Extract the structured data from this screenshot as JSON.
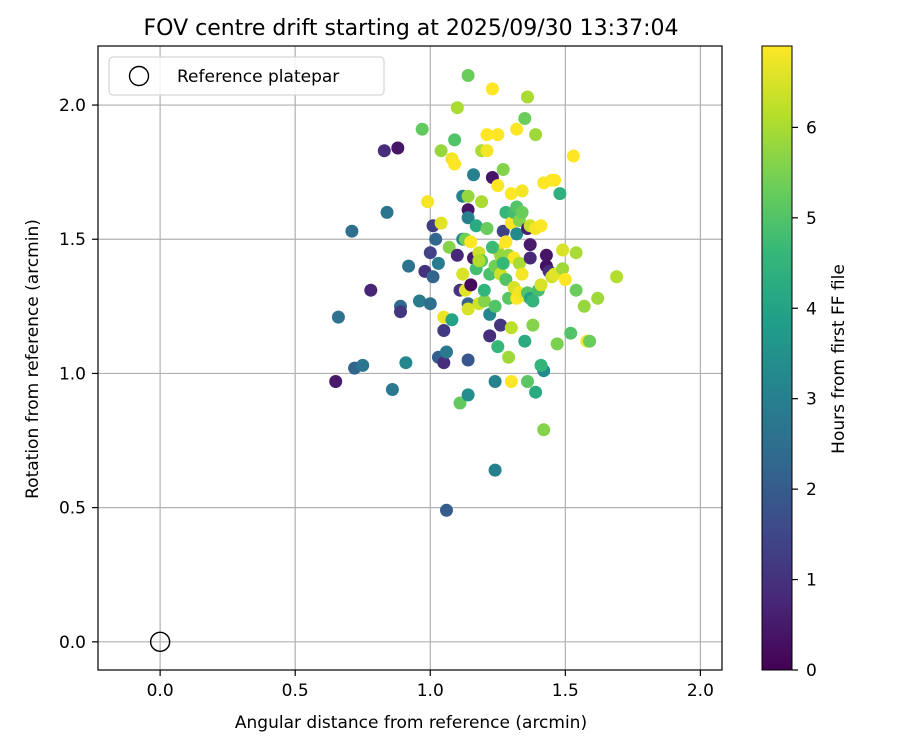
{
  "chart_data": {
    "type": "scatter",
    "title": "FOV centre drift starting at 2025/09/30 13:37:04",
    "xlabel": "Angular distance from reference (arcmin)",
    "ylabel": "Rotation from reference (arcmin)",
    "xlim": [
      -0.23,
      2.08
    ],
    "ylim": [
      -0.105,
      2.22
    ],
    "xticks": [
      "0.0",
      "0.5",
      "1.0",
      "1.5",
      "2.0"
    ],
    "xtick_values": [
      0.0,
      0.5,
      1.0,
      1.5,
      2.0
    ],
    "yticks": [
      "0.0",
      "0.5",
      "1.0",
      "1.5",
      "2.0"
    ],
    "ytick_values": [
      0.0,
      0.5,
      1.0,
      1.5,
      2.0
    ],
    "grid": true,
    "legend": {
      "label": "Reference platepar",
      "placement": "top-left"
    },
    "reference_point": {
      "x": 0.0,
      "y": 0.0
    },
    "colorbar": {
      "label": "Hours from first FF file",
      "min": 0,
      "max": 6.9,
      "ticks": [
        "0",
        "1",
        "2",
        "3",
        "4",
        "5",
        "6"
      ],
      "tick_values": [
        0,
        1,
        2,
        3,
        4,
        5,
        6
      ],
      "colormap": "viridis",
      "colors": [
        "#440154",
        "#482878",
        "#3e4989",
        "#31688e",
        "#26828e",
        "#1f9e89",
        "#35b779",
        "#6ece58",
        "#b5de2b",
        "#fde725"
      ]
    },
    "points": [
      [
        0.65,
        0.97,
        0.5
      ],
      [
        0.71,
        1.53,
        2.5
      ],
      [
        0.66,
        1.21,
        2.6
      ],
      [
        0.72,
        1.02,
        2.2
      ],
      [
        0.75,
        1.03,
        2.7
      ],
      [
        0.78,
        1.31,
        0.7
      ],
      [
        0.83,
        1.83,
        0.9
      ],
      [
        0.88,
        1.84,
        0.4
      ],
      [
        0.84,
        1.6,
        2.7
      ],
      [
        0.86,
        0.94,
        2.8
      ],
      [
        0.89,
        1.25,
        2.4
      ],
      [
        0.89,
        1.23,
        1.1
      ],
      [
        0.91,
        1.04,
        3.2
      ],
      [
        0.92,
        1.4,
        2.6
      ],
      [
        0.96,
        1.27,
        2.9
      ],
      [
        0.98,
        1.38,
        1.0
      ],
      [
        0.97,
        1.91,
        5.2
      ],
      [
        0.99,
        1.64,
        6.8
      ],
      [
        1.0,
        1.26,
        2.5
      ],
      [
        1.0,
        1.45,
        1.4
      ],
      [
        1.01,
        1.36,
        2.2
      ],
      [
        1.01,
        1.55,
        1.3
      ],
      [
        1.02,
        1.5,
        2.3
      ],
      [
        1.03,
        1.06,
        2.1
      ],
      [
        1.03,
        1.41,
        2.9
      ],
      [
        1.04,
        1.83,
        5.8
      ],
      [
        1.04,
        1.56,
        6.6
      ],
      [
        1.05,
        1.04,
        0.9
      ],
      [
        1.05,
        1.16,
        1.2
      ],
      [
        1.06,
        1.08,
        2.8
      ],
      [
        1.05,
        1.21,
        6.7
      ],
      [
        1.06,
        0.49,
        2.0
      ],
      [
        1.07,
        1.47,
        5.6
      ],
      [
        1.08,
        1.2,
        4.0
      ],
      [
        1.08,
        1.8,
        6.8
      ],
      [
        1.09,
        1.78,
        6.9
      ],
      [
        1.09,
        1.87,
        5.0
      ],
      [
        1.1,
        1.99,
        6.0
      ],
      [
        1.1,
        1.44,
        0.8
      ],
      [
        1.11,
        1.31,
        1.0
      ],
      [
        1.11,
        0.89,
        5.2
      ],
      [
        1.12,
        1.5,
        3.3
      ],
      [
        1.12,
        1.66,
        3.1
      ],
      [
        1.13,
        1.31,
        6.6
      ],
      [
        1.13,
        1.5,
        5.4
      ],
      [
        1.14,
        2.11,
        5.3
      ],
      [
        1.14,
        1.66,
        5.8
      ],
      [
        1.14,
        1.61,
        0.4
      ],
      [
        1.14,
        1.58,
        3.0
      ],
      [
        1.14,
        1.26,
        2.2
      ],
      [
        1.14,
        1.24,
        6.5
      ],
      [
        1.14,
        1.05,
        1.9
      ],
      [
        1.14,
        0.92,
        3.4
      ],
      [
        1.15,
        1.49,
        6.9
      ],
      [
        1.15,
        1.33,
        0.2
      ],
      [
        1.16,
        1.74,
        3.0
      ],
      [
        1.16,
        1.43,
        0.5
      ],
      [
        1.17,
        1.39,
        4.8
      ],
      [
        1.17,
        1.55,
        4.2
      ],
      [
        1.18,
        1.26,
        6.4
      ],
      [
        1.18,
        1.45,
        6.4
      ],
      [
        1.19,
        1.64,
        6.0
      ],
      [
        1.19,
        1.42,
        5.1
      ],
      [
        1.19,
        1.83,
        6.0
      ],
      [
        1.2,
        1.27,
        5.6
      ],
      [
        1.2,
        1.31,
        4.5
      ],
      [
        1.21,
        1.89,
        6.9
      ],
      [
        1.21,
        1.83,
        6.8
      ],
      [
        1.22,
        1.37,
        4.9
      ],
      [
        1.22,
        1.14,
        0.9
      ],
      [
        1.22,
        1.22,
        3.2
      ],
      [
        1.23,
        1.73,
        0.4
      ],
      [
        1.23,
        2.06,
        6.9
      ],
      [
        1.24,
        1.25,
        5.0
      ],
      [
        1.24,
        1.4,
        5.4
      ],
      [
        1.24,
        0.97,
        3.1
      ],
      [
        1.24,
        0.64,
        3.0
      ],
      [
        1.25,
        1.89,
        6.9
      ],
      [
        1.25,
        1.7,
        6.9
      ],
      [
        1.25,
        1.46,
        6.6
      ],
      [
        1.25,
        1.1,
        4.6
      ],
      [
        1.26,
        1.37,
        6.4
      ],
      [
        1.26,
        1.18,
        1.1
      ],
      [
        1.26,
        1.44,
        5.8
      ],
      [
        1.27,
        1.76,
        5.6
      ],
      [
        1.27,
        1.53,
        1.4
      ],
      [
        1.28,
        1.6,
        4.6
      ],
      [
        1.28,
        1.49,
        6.9
      ],
      [
        1.28,
        1.35,
        5.0
      ],
      [
        1.29,
        1.06,
        5.9
      ],
      [
        1.29,
        1.28,
        5.1
      ],
      [
        1.29,
        1.44,
        5.8
      ],
      [
        1.3,
        1.67,
        6.9
      ],
      [
        1.3,
        1.56,
        6.9
      ],
      [
        1.3,
        1.17,
        6.2
      ],
      [
        1.3,
        0.97,
        6.9
      ],
      [
        1.31,
        1.6,
        4.8
      ],
      [
        1.31,
        1.43,
        6.9
      ],
      [
        1.31,
        1.32,
        6.5
      ],
      [
        1.32,
        1.28,
        6.9
      ],
      [
        1.32,
        1.91,
        6.9
      ],
      [
        1.32,
        1.62,
        5.0
      ],
      [
        1.32,
        1.52,
        3.3
      ],
      [
        1.33,
        1.57,
        5.6
      ],
      [
        1.33,
        1.41,
        6.0
      ],
      [
        1.33,
        1.3,
        6.8
      ],
      [
        1.34,
        1.6,
        5.3
      ],
      [
        1.34,
        1.68,
        6.8
      ],
      [
        1.34,
        1.37,
        6.8
      ],
      [
        1.35,
        1.29,
        6.7
      ],
      [
        1.35,
        1.12,
        4.2
      ],
      [
        1.35,
        1.95,
        5.3
      ],
      [
        1.36,
        2.03,
        6.0
      ],
      [
        1.36,
        1.54,
        0.6
      ],
      [
        1.36,
        1.3,
        5.0
      ],
      [
        1.36,
        0.97,
        5.1
      ],
      [
        1.37,
        1.43,
        0.8
      ],
      [
        1.37,
        1.28,
        6.9
      ],
      [
        1.37,
        1.28,
        4.0
      ],
      [
        1.37,
        1.55,
        6.4
      ],
      [
        1.37,
        1.48,
        0.5
      ],
      [
        1.38,
        1.27,
        4.5
      ],
      [
        1.38,
        1.18,
        5.6
      ],
      [
        1.39,
        1.89,
        5.9
      ],
      [
        1.39,
        0.93,
        4.2
      ],
      [
        1.39,
        1.54,
        6.8
      ],
      [
        1.4,
        1.31,
        4.8
      ],
      [
        1.41,
        1.55,
        6.9
      ],
      [
        1.41,
        1.33,
        6.5
      ],
      [
        1.42,
        1.01,
        3.3
      ],
      [
        1.42,
        1.71,
        6.9
      ],
      [
        1.42,
        0.79,
        5.6
      ],
      [
        1.43,
        1.44,
        0.4
      ],
      [
        1.43,
        1.4,
        0.3
      ],
      [
        1.44,
        1.38,
        0.9
      ],
      [
        1.45,
        1.72,
        6.9
      ],
      [
        1.45,
        1.36,
        6.4
      ],
      [
        1.46,
        1.37,
        6.6
      ],
      [
        1.46,
        1.72,
        6.9
      ],
      [
        1.47,
        1.11,
        5.5
      ],
      [
        1.48,
        1.67,
        4.4
      ],
      [
        1.49,
        1.39,
        5.9
      ],
      [
        1.49,
        1.46,
        6.5
      ],
      [
        1.5,
        1.35,
        6.9
      ],
      [
        1.52,
        1.15,
        5.0
      ],
      [
        1.53,
        1.81,
        6.9
      ],
      [
        1.54,
        1.45,
        6.0
      ],
      [
        1.54,
        1.31,
        5.3
      ],
      [
        1.57,
        1.25,
        5.8
      ],
      [
        1.58,
        1.12,
        6.8
      ],
      [
        1.59,
        1.12,
        5.3
      ],
      [
        1.62,
        1.28,
        5.9
      ],
      [
        1.69,
        1.36,
        6.1
      ],
      [
        1.41,
        1.03,
        4.5
      ],
      [
        1.27,
        1.41,
        4.6
      ],
      [
        1.21,
        1.54,
        5.3
      ],
      [
        1.18,
        1.42,
        6.1
      ],
      [
        1.12,
        1.37,
        6.5
      ],
      [
        1.23,
        1.47,
        4.7
      ]
    ]
  }
}
